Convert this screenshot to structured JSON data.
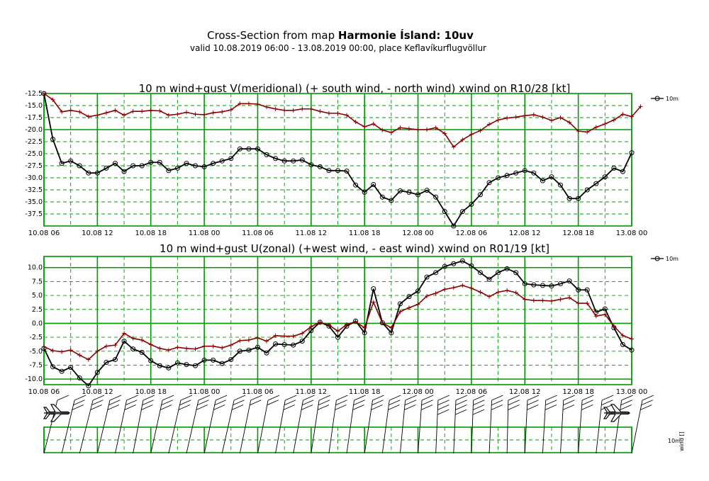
{
  "header": {
    "title_prefix": "Cross-Section from map",
    "title_bold": "Harmonie Ísland: 10uv",
    "subtitle": "valid 10.08.2019 06:00 - 13.08.2019 00:00, place Keflavíkurflugvöllur"
  },
  "colors": {
    "grid": "#009900",
    "series_10m": "#000000",
    "series_gust": "#8b0000"
  },
  "x_tick_labels": [
    "10.08 06",
    "10.08 12",
    "10.08 18",
    "11.08 00",
    "11.08 06",
    "11.08 12",
    "11.08 18",
    "12.08 00",
    "12.08 06",
    "12.08 12",
    "12.08 18",
    "13.08 00"
  ],
  "legend": {
    "label": "10m"
  },
  "wind_panel": {
    "level_label": "10m",
    "axis_label": "wind []"
  },
  "chart_data": [
    {
      "type": "line",
      "title": "10 m wind+gust V(meridional) (+ south wind, - north wind) xwind on R10/28 [kt]",
      "ylim": [
        -40,
        -12.5
      ],
      "y_tick_labels": [
        "-12.5",
        "-15.0",
        "-17.5",
        "-20.0",
        "-22.5",
        "-25.0",
        "-27.5",
        "-30.0",
        "-32.5",
        "-35.0",
        "-37.5"
      ],
      "x_range_hours": [
        0,
        66
      ],
      "series": [
        {
          "name": "10m",
          "hours_start": 0,
          "step_hours": 1,
          "values": [
            -12.5,
            -22,
            -27,
            -26.5,
            -27.5,
            -29,
            -29,
            -28,
            -27,
            -28.7,
            -27.5,
            -27.5,
            -26.8,
            -26.8,
            -28.5,
            -28,
            -27,
            -27.5,
            -27.7,
            -27,
            -26.5,
            -26,
            -24,
            -24,
            -24,
            -25.2,
            -26,
            -26.5,
            -26.5,
            -26.3,
            -27.3,
            -27.7,
            -28.5,
            -28.5,
            -28.6,
            -31.5,
            -33,
            -31.4,
            -34,
            -34.7,
            -32.7,
            -33,
            -33.5,
            -32.6,
            -34,
            -37,
            -40,
            -37,
            -35.5,
            -33.5,
            -31,
            -30,
            -29.5,
            -29,
            -28.5,
            -29,
            -30.6,
            -29.8,
            -31.5,
            -34.3,
            -34.3,
            -32.5,
            -31.2,
            -29.8,
            -28,
            -28.7,
            -24.8
          ]
        },
        {
          "name": "gust",
          "hours_start": 0,
          "step_hours": 1,
          "values": [
            -12.5,
            -13.8,
            -16.3,
            -16,
            -16.3,
            -17.3,
            -17,
            -16.5,
            -16,
            -17,
            -16.2,
            -16.2,
            -16,
            -16.1,
            -17,
            -16.8,
            -16.4,
            -16.8,
            -16.9,
            -16.5,
            -16.3,
            -15.9,
            -14.6,
            -14.6,
            -14.7,
            -15.3,
            -15.7,
            -16,
            -16,
            -15.7,
            -15.7,
            -16.2,
            -16.6,
            -16.6,
            -17,
            -18.4,
            -19.4,
            -18.8,
            -20.1,
            -20.6,
            -19.6,
            -19.8,
            -20,
            -20,
            -19.6,
            -20.8,
            -23.6,
            -22.1,
            -21,
            -20.2,
            -18.9,
            -18,
            -17.6,
            -17.4,
            -17.1,
            -16.9,
            -17.4,
            -18.1,
            -17.5,
            -18.5,
            -20.3,
            -20.5,
            -19.5,
            -18.8,
            -18,
            -16.8,
            -17.3,
            -15.2
          ]
        }
      ]
    },
    {
      "type": "line",
      "title": "10 m wind+gust U(zonal) (+west wind, - east wind) xwind on R01/19 [kt]",
      "ylim": [
        -11,
        12
      ],
      "y_tick_labels": [
        "10.0",
        "7.5",
        "5.0",
        "2.5",
        "0.0",
        "-2.5",
        "-5.0",
        "-7.5",
        "-10.0"
      ],
      "x_range_hours": [
        0,
        66
      ],
      "series": [
        {
          "name": "10m",
          "hours_start": 0,
          "step_hours": 1,
          "values": [
            -4.5,
            -7.8,
            -8.6,
            -7.9,
            -9.8,
            -11.2,
            -8.8,
            -7,
            -6.5,
            -3.2,
            -4.6,
            -5.2,
            -6.7,
            -7.6,
            -8,
            -7.1,
            -7.4,
            -7.6,
            -6.6,
            -6.6,
            -7.2,
            -6.5,
            -5,
            -4.8,
            -4.3,
            -5.3,
            -3.7,
            -3.8,
            -3.9,
            -3.2,
            -1.3,
            0.2,
            -0.5,
            -2.5,
            -0.5,
            0.4,
            -1.7,
            6.2,
            0.1,
            -1.7,
            3.5,
            4.8,
            5.8,
            8.3,
            9.1,
            10.2,
            10.7,
            11.2,
            10.3,
            9.1,
            7.9,
            9.1,
            9.8,
            9.1,
            7.1,
            6.9,
            6.8,
            6.7,
            7.1,
            7.6,
            6,
            6,
            2,
            2.6,
            -0.8,
            -3.8,
            -4.8
          ]
        },
        {
          "name": "gust",
          "hours_start": 0,
          "step_hours": 1,
          "values": [
            -4.2,
            -4.9,
            -5.1,
            -4.8,
            -5.7,
            -6.5,
            -5,
            -4.1,
            -3.9,
            -1.8,
            -2.7,
            -3,
            -3.8,
            -4.5,
            -4.8,
            -4.3,
            -4.5,
            -4.6,
            -4.1,
            -4.1,
            -4.4,
            -3.9,
            -3.1,
            -3,
            -2.6,
            -3.2,
            -2.2,
            -2.3,
            -2.3,
            -1.8,
            -0.6,
            0.2,
            -0.3,
            -1.4,
            -0.2,
            0.3,
            -0.8,
            3.8,
            0.1,
            -0.8,
            2.1,
            2.8,
            3.4,
            4.9,
            5.4,
            6.1,
            6.4,
            6.8,
            6.3,
            5.6,
            4.8,
            5.6,
            5.9,
            5.5,
            4.3,
            4.1,
            4.1,
            4,
            4.3,
            4.6,
            3.6,
            3.6,
            1.3,
            1.6,
            -0.5,
            -2.2,
            -2.8
          ]
        }
      ]
    }
  ]
}
